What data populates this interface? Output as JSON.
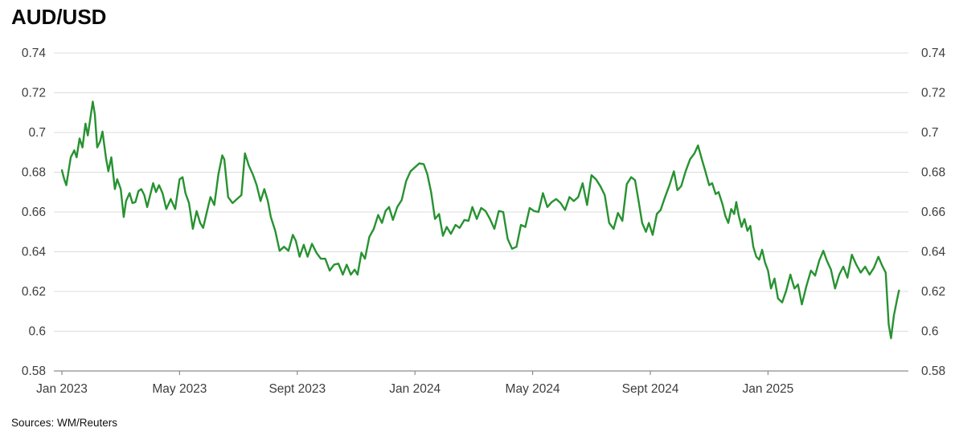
{
  "title": "AUD/USD",
  "source": "Sources: WM/Reuters",
  "colors": {
    "line": "#279231",
    "grid": "#dcdcdc",
    "axis": "#8c8c8c",
    "tick_text": "#3d3d3d",
    "title_text": "#0a0a0a"
  },
  "chart_data": {
    "type": "line",
    "title": "AUD/USD",
    "xlabel": "",
    "ylabel": "",
    "grid": "horizontal",
    "legend": "none",
    "y_axis_both_sides": true,
    "ylim": [
      0.58,
      0.74
    ],
    "y_ticks": [
      {
        "value": 0.74,
        "label": "0.74"
      },
      {
        "value": 0.72,
        "label": "0.72"
      },
      {
        "value": 0.7,
        "label": "0.7"
      },
      {
        "value": 0.68,
        "label": "0.68"
      },
      {
        "value": 0.66,
        "label": "0.66"
      },
      {
        "value": 0.64,
        "label": "0.64"
      },
      {
        "value": 0.62,
        "label": "0.62"
      },
      {
        "value": 0.6,
        "label": "0.6"
      },
      {
        "value": 0.58,
        "label": "0.58"
      }
    ],
    "x_ticks": [
      {
        "label": "Jan 2023",
        "month": 0
      },
      {
        "label": "May 2023",
        "month": 4
      },
      {
        "label": "Sept 2023",
        "month": 8
      },
      {
        "label": "Jan 2024",
        "month": 12
      },
      {
        "label": "May 2024",
        "month": 16
      },
      {
        "label": "Sept 2024",
        "month": 20
      },
      {
        "label": "Jan 2025",
        "month": 24
      }
    ],
    "xlim_months": [
      0,
      28.8
    ],
    "series": [
      {
        "name": "AUD/USD",
        "color": "#279231",
        "points_month_value": [
          [
            0.0,
            0.681
          ],
          [
            0.08,
            0.6765
          ],
          [
            0.15,
            0.6735
          ],
          [
            0.3,
            0.6875
          ],
          [
            0.42,
            0.691
          ],
          [
            0.5,
            0.6875
          ],
          [
            0.6,
            0.697
          ],
          [
            0.7,
            0.6925
          ],
          [
            0.8,
            0.7045
          ],
          [
            0.88,
            0.6985
          ],
          [
            0.95,
            0.7055
          ],
          [
            1.05,
            0.7155
          ],
          [
            1.12,
            0.709
          ],
          [
            1.2,
            0.6925
          ],
          [
            1.3,
            0.6955
          ],
          [
            1.38,
            0.7005
          ],
          [
            1.5,
            0.687
          ],
          [
            1.58,
            0.6805
          ],
          [
            1.68,
            0.6875
          ],
          [
            1.8,
            0.6715
          ],
          [
            1.88,
            0.6765
          ],
          [
            2.0,
            0.6715
          ],
          [
            2.1,
            0.6575
          ],
          [
            2.18,
            0.6655
          ],
          [
            2.3,
            0.6695
          ],
          [
            2.4,
            0.6645
          ],
          [
            2.5,
            0.665
          ],
          [
            2.6,
            0.6705
          ],
          [
            2.7,
            0.6715
          ],
          [
            2.8,
            0.6685
          ],
          [
            2.9,
            0.6625
          ],
          [
            3.0,
            0.6685
          ],
          [
            3.1,
            0.6745
          ],
          [
            3.2,
            0.67
          ],
          [
            3.3,
            0.6735
          ],
          [
            3.42,
            0.6695
          ],
          [
            3.55,
            0.6615
          ],
          [
            3.7,
            0.6665
          ],
          [
            3.85,
            0.6615
          ],
          [
            4.0,
            0.6765
          ],
          [
            4.1,
            0.6775
          ],
          [
            4.2,
            0.6695
          ],
          [
            4.32,
            0.6645
          ],
          [
            4.45,
            0.6515
          ],
          [
            4.58,
            0.6605
          ],
          [
            4.7,
            0.6545
          ],
          [
            4.8,
            0.652
          ],
          [
            4.95,
            0.6615
          ],
          [
            5.05,
            0.6675
          ],
          [
            5.18,
            0.6635
          ],
          [
            5.32,
            0.679
          ],
          [
            5.45,
            0.6885
          ],
          [
            5.52,
            0.6865
          ],
          [
            5.65,
            0.6675
          ],
          [
            5.8,
            0.6645
          ],
          [
            5.95,
            0.6665
          ],
          [
            6.1,
            0.6685
          ],
          [
            6.22,
            0.6895
          ],
          [
            6.35,
            0.6835
          ],
          [
            6.5,
            0.6785
          ],
          [
            6.62,
            0.6735
          ],
          [
            6.75,
            0.6655
          ],
          [
            6.88,
            0.6715
          ],
          [
            7.0,
            0.6655
          ],
          [
            7.1,
            0.6575
          ],
          [
            7.25,
            0.6505
          ],
          [
            7.4,
            0.6405
          ],
          [
            7.55,
            0.6425
          ],
          [
            7.7,
            0.6405
          ],
          [
            7.85,
            0.6485
          ],
          [
            7.95,
            0.6455
          ],
          [
            8.08,
            0.6375
          ],
          [
            8.22,
            0.6435
          ],
          [
            8.35,
            0.6375
          ],
          [
            8.5,
            0.644
          ],
          [
            8.65,
            0.6395
          ],
          [
            8.8,
            0.6365
          ],
          [
            8.95,
            0.6365
          ],
          [
            9.1,
            0.6305
          ],
          [
            9.25,
            0.6335
          ],
          [
            9.4,
            0.634
          ],
          [
            9.55,
            0.6285
          ],
          [
            9.68,
            0.6335
          ],
          [
            9.82,
            0.6285
          ],
          [
            9.95,
            0.631
          ],
          [
            10.05,
            0.6285
          ],
          [
            10.18,
            0.6395
          ],
          [
            10.3,
            0.6365
          ],
          [
            10.45,
            0.6475
          ],
          [
            10.6,
            0.6515
          ],
          [
            10.75,
            0.6585
          ],
          [
            10.88,
            0.6545
          ],
          [
            11.0,
            0.6605
          ],
          [
            11.12,
            0.6625
          ],
          [
            11.25,
            0.656
          ],
          [
            11.4,
            0.6625
          ],
          [
            11.55,
            0.666
          ],
          [
            11.7,
            0.6755
          ],
          [
            11.85,
            0.6805
          ],
          [
            12.0,
            0.6825
          ],
          [
            12.15,
            0.6845
          ],
          [
            12.3,
            0.684
          ],
          [
            12.42,
            0.679
          ],
          [
            12.55,
            0.67
          ],
          [
            12.68,
            0.6565
          ],
          [
            12.82,
            0.659
          ],
          [
            12.95,
            0.648
          ],
          [
            13.08,
            0.6525
          ],
          [
            13.22,
            0.649
          ],
          [
            13.38,
            0.6535
          ],
          [
            13.52,
            0.652
          ],
          [
            13.68,
            0.656
          ],
          [
            13.82,
            0.6555
          ],
          [
            13.95,
            0.6625
          ],
          [
            14.1,
            0.6565
          ],
          [
            14.25,
            0.662
          ],
          [
            14.4,
            0.6605
          ],
          [
            14.55,
            0.6565
          ],
          [
            14.7,
            0.6515
          ],
          [
            14.85,
            0.6605
          ],
          [
            15.0,
            0.66
          ],
          [
            15.15,
            0.6465
          ],
          [
            15.3,
            0.6415
          ],
          [
            15.45,
            0.6425
          ],
          [
            15.6,
            0.6535
          ],
          [
            15.75,
            0.6525
          ],
          [
            15.9,
            0.662
          ],
          [
            16.05,
            0.6605
          ],
          [
            16.2,
            0.66
          ],
          [
            16.35,
            0.6695
          ],
          [
            16.5,
            0.6625
          ],
          [
            16.65,
            0.665
          ],
          [
            16.8,
            0.6665
          ],
          [
            16.95,
            0.6645
          ],
          [
            17.1,
            0.661
          ],
          [
            17.25,
            0.6675
          ],
          [
            17.4,
            0.6655
          ],
          [
            17.55,
            0.6675
          ],
          [
            17.7,
            0.6745
          ],
          [
            17.85,
            0.6635
          ],
          [
            18.0,
            0.6785
          ],
          [
            18.15,
            0.6765
          ],
          [
            18.3,
            0.673
          ],
          [
            18.45,
            0.6685
          ],
          [
            18.6,
            0.6545
          ],
          [
            18.75,
            0.6515
          ],
          [
            18.9,
            0.6595
          ],
          [
            19.05,
            0.6555
          ],
          [
            19.2,
            0.674
          ],
          [
            19.35,
            0.6775
          ],
          [
            19.48,
            0.676
          ],
          [
            19.6,
            0.6655
          ],
          [
            19.72,
            0.6545
          ],
          [
            19.85,
            0.65
          ],
          [
            19.95,
            0.6545
          ],
          [
            20.08,
            0.6485
          ],
          [
            20.22,
            0.659
          ],
          [
            20.35,
            0.661
          ],
          [
            20.5,
            0.6675
          ],
          [
            20.65,
            0.6735
          ],
          [
            20.8,
            0.6805
          ],
          [
            20.92,
            0.671
          ],
          [
            21.05,
            0.673
          ],
          [
            21.2,
            0.6805
          ],
          [
            21.35,
            0.6865
          ],
          [
            21.5,
            0.6895
          ],
          [
            21.62,
            0.6935
          ],
          [
            21.75,
            0.6865
          ],
          [
            21.88,
            0.68
          ],
          [
            22.0,
            0.6735
          ],
          [
            22.1,
            0.6745
          ],
          [
            22.22,
            0.669
          ],
          [
            22.32,
            0.67
          ],
          [
            22.45,
            0.664
          ],
          [
            22.55,
            0.658
          ],
          [
            22.65,
            0.6545
          ],
          [
            22.75,
            0.6615
          ],
          [
            22.85,
            0.659
          ],
          [
            22.92,
            0.665
          ],
          [
            23.0,
            0.6585
          ],
          [
            23.1,
            0.6525
          ],
          [
            23.2,
            0.6565
          ],
          [
            23.3,
            0.6505
          ],
          [
            23.4,
            0.653
          ],
          [
            23.5,
            0.6425
          ],
          [
            23.6,
            0.6375
          ],
          [
            23.7,
            0.636
          ],
          [
            23.8,
            0.641
          ],
          [
            23.9,
            0.6345
          ],
          [
            24.0,
            0.6305
          ],
          [
            24.1,
            0.6215
          ],
          [
            24.22,
            0.6265
          ],
          [
            24.34,
            0.6165
          ],
          [
            24.48,
            0.6145
          ],
          [
            24.62,
            0.6205
          ],
          [
            24.76,
            0.6285
          ],
          [
            24.9,
            0.6215
          ],
          [
            25.02,
            0.6235
          ],
          [
            25.15,
            0.6135
          ],
          [
            25.3,
            0.6225
          ],
          [
            25.46,
            0.6305
          ],
          [
            25.6,
            0.628
          ],
          [
            25.74,
            0.6355
          ],
          [
            25.88,
            0.6405
          ],
          [
            26.0,
            0.6355
          ],
          [
            26.14,
            0.631
          ],
          [
            26.28,
            0.6215
          ],
          [
            26.42,
            0.6285
          ],
          [
            26.56,
            0.6325
          ],
          [
            26.7,
            0.627
          ],
          [
            26.85,
            0.6385
          ],
          [
            27.0,
            0.6335
          ],
          [
            27.15,
            0.6295
          ],
          [
            27.3,
            0.6325
          ],
          [
            27.45,
            0.6285
          ],
          [
            27.6,
            0.632
          ],
          [
            27.75,
            0.6375
          ],
          [
            27.88,
            0.633
          ],
          [
            28.0,
            0.6295
          ],
          [
            28.1,
            0.6035
          ],
          [
            28.18,
            0.5965
          ],
          [
            28.28,
            0.608
          ],
          [
            28.38,
            0.6155
          ],
          [
            28.45,
            0.6205
          ]
        ]
      }
    ]
  }
}
